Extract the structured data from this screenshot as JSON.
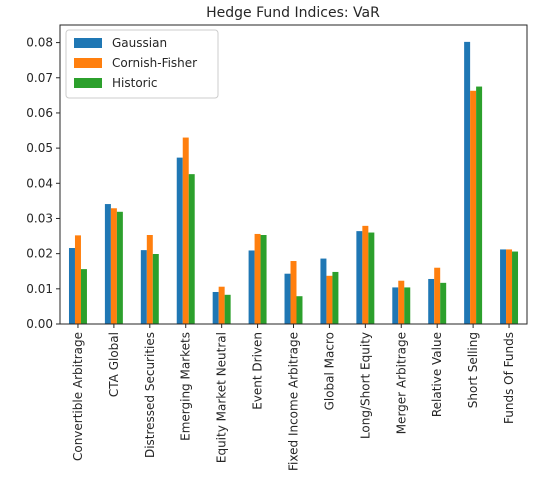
{
  "chart_data": {
    "type": "bar",
    "title": "Hedge Fund Indices: VaR",
    "xlabel": "",
    "ylabel": "",
    "ylim": [
      0,
      0.085
    ],
    "yticks": [
      "0.00",
      "0.01",
      "0.02",
      "0.03",
      "0.04",
      "0.05",
      "0.06",
      "0.07",
      "0.08"
    ],
    "grid": false,
    "legend_position": "top-left",
    "categories": [
      "Convertible Arbitrage",
      "CTA Global",
      "Distressed Securities",
      "Emerging Markets",
      "Equity Market Neutral",
      "Event Driven",
      "Fixed Income Arbitrage",
      "Global Macro",
      "Long/Short Equity",
      "Merger Arbitrage",
      "Relative Value",
      "Short Selling",
      "Funds Of Funds"
    ],
    "series": [
      {
        "name": "Gaussian",
        "color": "#1f77b4",
        "values": [
          0.0216,
          0.0341,
          0.021,
          0.0473,
          0.0091,
          0.0209,
          0.0143,
          0.0186,
          0.0264,
          0.0104,
          0.0128,
          0.0802,
          0.0212
        ]
      },
      {
        "name": "Cornish-Fisher",
        "color": "#ff7f0e",
        "values": [
          0.0252,
          0.0329,
          0.0253,
          0.053,
          0.0106,
          0.0256,
          0.0179,
          0.0137,
          0.0279,
          0.0123,
          0.016,
          0.0663,
          0.0212
        ]
      },
      {
        "name": "Historic",
        "color": "#2ca02c",
        "values": [
          0.0156,
          0.0319,
          0.0199,
          0.0426,
          0.0083,
          0.0253,
          0.0079,
          0.0148,
          0.026,
          0.0104,
          0.0117,
          0.0675,
          0.0206
        ]
      }
    ]
  }
}
